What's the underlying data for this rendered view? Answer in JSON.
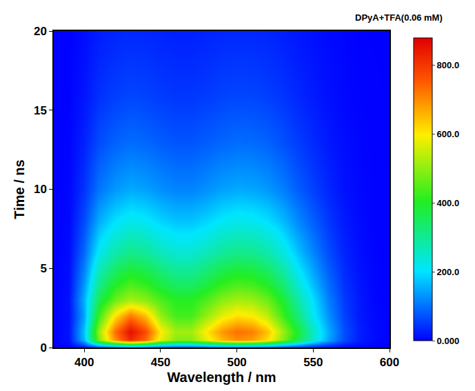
{
  "chart_data": {
    "type": "heatmap",
    "xlabel": "Wavelength / nm",
    "ylabel": "Time / ns",
    "colorbar_title": "DPyA+TFA(0.06 mM)",
    "x": [
      380,
      390,
      400,
      410,
      420,
      430,
      440,
      450,
      460,
      470,
      480,
      490,
      500,
      510,
      520,
      530,
      540,
      550,
      560,
      570,
      580,
      590,
      600
    ],
    "y": [
      0,
      0.5,
      1,
      2,
      3,
      4,
      6,
      8,
      10,
      13,
      16,
      20
    ],
    "cells": [
      [
        0,
        2,
        16,
        48,
        68,
        80,
        72,
        56,
        48,
        48,
        56,
        64,
        68,
        66,
        60,
        48,
        36,
        24,
        14,
        6,
        2,
        1,
        0
      ],
      [
        0,
        16,
        164,
        492,
        697,
        820,
        738,
        574,
        492,
        492,
        574,
        656,
        697,
        681,
        615,
        492,
        369,
        246,
        148,
        66,
        25,
        8,
        0
      ],
      [
        0,
        17,
        172,
        516,
        731,
        860,
        774,
        602,
        516,
        516,
        602,
        688,
        731,
        714,
        645,
        516,
        387,
        258,
        155,
        69,
        26,
        9,
        0
      ],
      [
        0,
        14,
        144,
        432,
        612,
        720,
        648,
        504,
        432,
        432,
        504,
        576,
        612,
        598,
        540,
        432,
        324,
        216,
        130,
        58,
        22,
        7,
        0
      ],
      [
        0,
        16,
        156,
        364,
        468,
        520,
        494,
        442,
        406,
        406,
        442,
        494,
        520,
        510,
        468,
        390,
        286,
        198,
        114,
        52,
        21,
        5,
        0
      ],
      [
        0,
        13,
        132,
        308,
        396,
        440,
        418,
        374,
        343,
        343,
        374,
        418,
        440,
        431,
        396,
        330,
        242,
        167,
        97,
        44,
        18,
        4,
        0
      ],
      [
        0,
        9,
        93,
        217,
        279,
        310,
        295,
        264,
        242,
        242,
        264,
        295,
        310,
        304,
        279,
        233,
        171,
        118,
        68,
        31,
        12,
        3,
        0
      ],
      [
        0,
        7,
        66,
        154,
        198,
        220,
        209,
        187,
        172,
        172,
        187,
        209,
        220,
        216,
        198,
        165,
        121,
        84,
        48,
        22,
        9,
        2,
        0
      ],
      [
        0,
        5,
        45,
        105,
        135,
        150,
        143,
        128,
        117,
        117,
        128,
        143,
        150,
        147,
        135,
        113,
        83,
        57,
        33,
        15,
        6,
        2,
        0
      ],
      [
        0,
        3,
        29,
        67,
        86,
        95,
        90,
        81,
        74,
        74,
        81,
        90,
        95,
        93,
        86,
        71,
        52,
        36,
        21,
        10,
        4,
        1,
        0
      ],
      [
        0,
        2,
        18,
        42,
        54,
        60,
        57,
        51,
        47,
        47,
        51,
        57,
        60,
        59,
        54,
        45,
        33,
        23,
        13,
        6,
        2,
        1,
        0
      ],
      [
        0,
        1,
        11,
        25,
        32,
        35,
        33,
        30,
        27,
        27,
        30,
        33,
        35,
        34,
        32,
        26,
        19,
        13,
        8,
        4,
        1,
        0,
        0
      ]
    ],
    "xlim": [
      380,
      600
    ],
    "xticks": [
      400,
      450,
      500,
      550,
      600
    ],
    "ylim": [
      0,
      20
    ],
    "yticks": [
      0,
      5,
      10,
      15,
      20
    ],
    "zlim": [
      0,
      880
    ],
    "zticks": [
      {
        "value": 0,
        "label": "0.000"
      },
      {
        "value": 200,
        "label": "200.0"
      },
      {
        "value": 400,
        "label": "400.0"
      },
      {
        "value": 600,
        "label": "600.0"
      },
      {
        "value": 800,
        "label": "800.0"
      }
    ],
    "grid": false
  }
}
